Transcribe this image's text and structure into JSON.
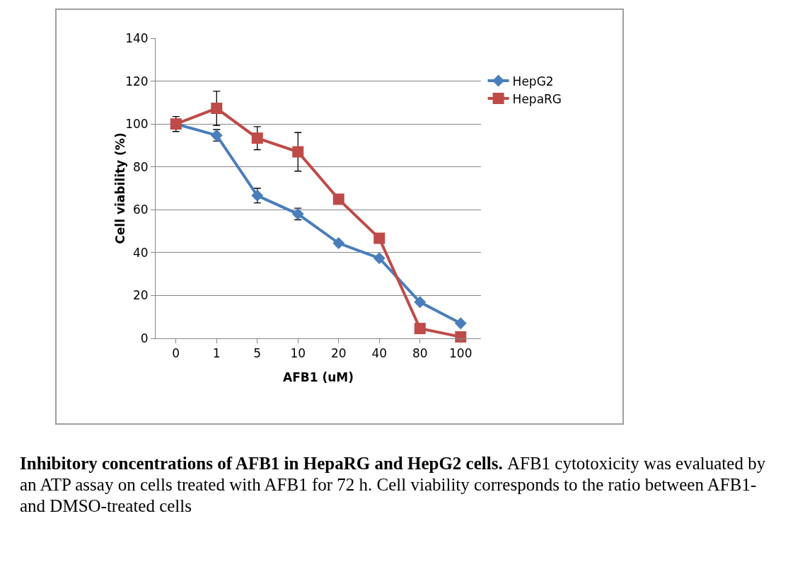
{
  "chart_data": {
    "type": "line",
    "xlabel": "AFB1 (uM)",
    "ylabel": "Cell viability (%)",
    "categories": [
      "0",
      "1",
      "5",
      "10",
      "20",
      "40",
      "80",
      "100"
    ],
    "series": [
      {
        "name": "HepG2",
        "color": "#4a7ebb",
        "marker": "diamond",
        "values": [
          100,
          94.7,
          66.6,
          58,
          44.4,
          37.4,
          16.9,
          7
        ],
        "errors": [
          null,
          2.7,
          3.4,
          2.7,
          null,
          null,
          null,
          null
        ]
      },
      {
        "name": "HepaRG",
        "color": "#be4b48",
        "marker": "square",
        "values": [
          100,
          107.3,
          93.4,
          87,
          64.9,
          46.7,
          4.6,
          0.7
        ],
        "errors": [
          3.5,
          8,
          5.4,
          9,
          null,
          null,
          null,
          null
        ]
      }
    ],
    "ylim": [
      0,
      140
    ],
    "yticks": [
      0,
      20,
      40,
      60,
      80,
      100,
      120,
      140
    ],
    "grid": "y",
    "legend": "right",
    "line_style": "solid",
    "annotations": [
      "Inhibitory concentrations of AFB1 in HepaRG and HepG2 cells.",
      "AFB1 cytotoxicity was evaluated by an ATP assay on cells treated with AFB1 for 72 h. Cell viability corresponds to the ratio between AFB1- and DMSO-treated cells"
    ]
  }
}
